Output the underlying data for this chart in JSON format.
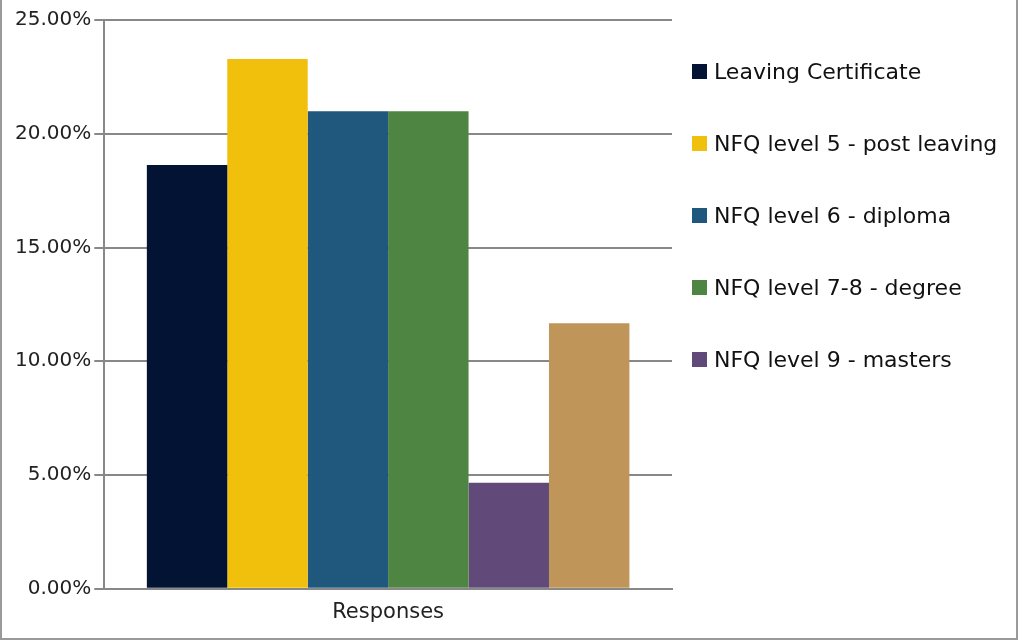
{
  "chart_data": {
    "type": "bar",
    "categories": [
      "Responses"
    ],
    "series": [
      {
        "name": "Leaving Certificate",
        "color": "#021333",
        "values": [
          18.63
        ]
      },
      {
        "name": "NFQ level 5 - post leaving",
        "color": "#f0c00c",
        "values": [
          23.29
        ]
      },
      {
        "name": "NFQ level 6 - diploma",
        "color": "#1f587c",
        "values": [
          20.99
        ]
      },
      {
        "name": "NFQ level 7-8 - degree",
        "color": "#4f8542",
        "values": [
          20.99
        ]
      },
      {
        "name": "NFQ level 9 - masters",
        "color": "#614a79",
        "values": [
          4.66
        ]
      },
      {
        "color": "#c09559",
        "values": [
          11.67
        ]
      }
    ],
    "ylim": [
      0,
      25
    ],
    "yticks": [
      {
        "value": 0,
        "label": "0.00%"
      },
      {
        "value": 5,
        "label": "5.00%"
      },
      {
        "value": 10,
        "label": "10.00%"
      },
      {
        "value": 15,
        "label": "15.00%"
      },
      {
        "value": 20,
        "label": "20.00%"
      },
      {
        "value": 25,
        "label": "25.00%"
      }
    ],
    "grid": "y",
    "legend": "right"
  }
}
